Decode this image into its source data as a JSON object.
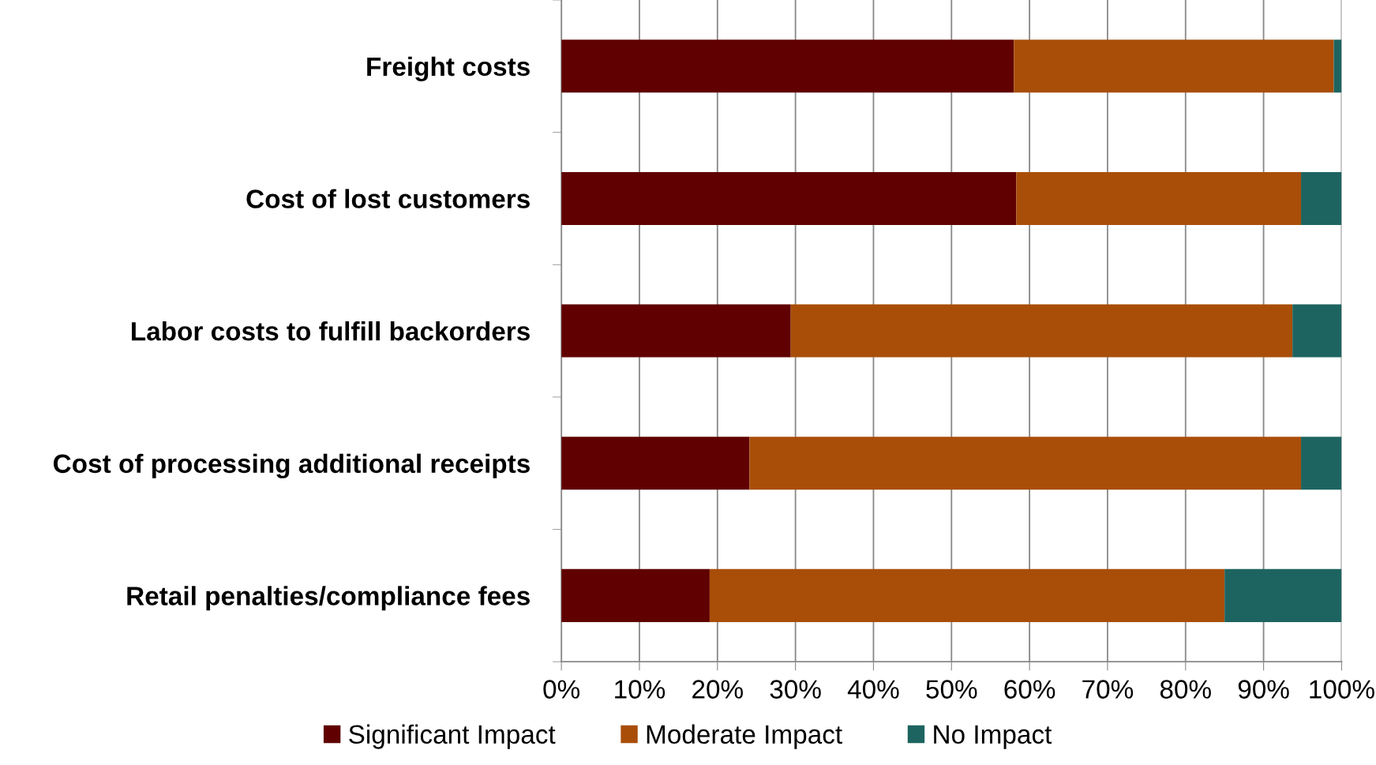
{
  "chart_data": {
    "type": "bar",
    "orientation": "horizontal",
    "stacked": true,
    "categories": [
      "Freight costs",
      "Cost of lost customers",
      "Labor costs to fulfill backorders",
      "Cost of processing additional receipts",
      "Retail penalties/compliance fees"
    ],
    "series": [
      {
        "name": "Significant Impact",
        "color": "#600000",
        "values": [
          58,
          58.3,
          29.4,
          24.1,
          19
        ]
      },
      {
        "name": "Moderate Impact",
        "color": "#a94e09",
        "values": [
          41,
          36.5,
          64.3,
          70.7,
          66
        ]
      },
      {
        "name": "No Impact",
        "color": "#1d6460",
        "values": [
          1,
          5.2,
          6.3,
          5.2,
          15
        ]
      }
    ],
    "xlim": [
      0,
      100
    ],
    "xticks": [
      {
        "value": 0,
        "label": "0%"
      },
      {
        "value": 10,
        "label": "10%"
      },
      {
        "value": 20,
        "label": "20%"
      },
      {
        "value": 30,
        "label": "30%"
      },
      {
        "value": 40,
        "label": "40%"
      },
      {
        "value": 50,
        "label": "50%"
      },
      {
        "value": 60,
        "label": "60%"
      },
      {
        "value": 70,
        "label": "70%"
      },
      {
        "value": 80,
        "label": "80%"
      },
      {
        "value": 90,
        "label": "90%"
      },
      {
        "value": 100,
        "label": "100%"
      }
    ],
    "grid": "x",
    "legend": "bottom"
  }
}
